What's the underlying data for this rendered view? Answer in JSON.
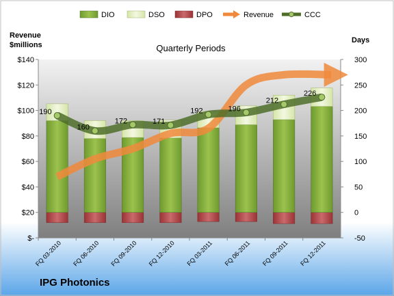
{
  "chart_data": {
    "type": "bar",
    "title": "Quarterly Periods",
    "company": "IPG Photonics",
    "y_left_label_line1": "Revenue",
    "y_left_label_line2": "$millions",
    "y_right_label": "Days",
    "categories": [
      "FQ 03-2010",
      "FQ 06-2010",
      "FQ 09-2010",
      "FQ 12-2010",
      "FQ 03-2011",
      "FQ 06-2011",
      "FQ 09-2011",
      "FQ 12-2011"
    ],
    "left_axis": {
      "ylim": [
        0,
        140
      ],
      "ticks": [
        "$-",
        "$20",
        "$40",
        "$60",
        "$80",
        "$100",
        "$120",
        "$140"
      ]
    },
    "right_axis": {
      "ylim": [
        -50,
        300
      ],
      "ticks": [
        "-50",
        "0",
        "50",
        "100",
        "150",
        "200",
        "250",
        "300"
      ]
    },
    "legend_position": "top",
    "grid": false,
    "series": [
      {
        "name": "DIO",
        "axis": "right",
        "color": "#7da53a",
        "values": [
          180,
          145,
          147,
          146,
          166,
          172,
          182,
          208
        ]
      },
      {
        "name": "DSO",
        "axis": "right",
        "color": "#e6f0c8",
        "values": [
          33,
          35,
          33,
          35,
          32,
          37,
          48,
          36
        ]
      },
      {
        "name": "DPO",
        "axis": "right",
        "color": "#b24a4d",
        "values": [
          -20,
          -20,
          -20,
          -20,
          -18,
          -18,
          -22,
          -22
        ]
      },
      {
        "name": "Revenue",
        "axis": "left",
        "color": "#f0893c",
        "values": [
          48,
          62,
          70,
          82,
          86,
          120,
          128,
          128
        ]
      },
      {
        "name": "CCC",
        "axis": "right",
        "color": "#4f6e2a",
        "values": [
          190,
          160,
          172,
          171,
          192,
          196,
          212,
          226
        ]
      }
    ],
    "ccc_labels": [
      "190",
      "160",
      "172",
      "171",
      "192",
      "196",
      "212",
      "226"
    ]
  }
}
